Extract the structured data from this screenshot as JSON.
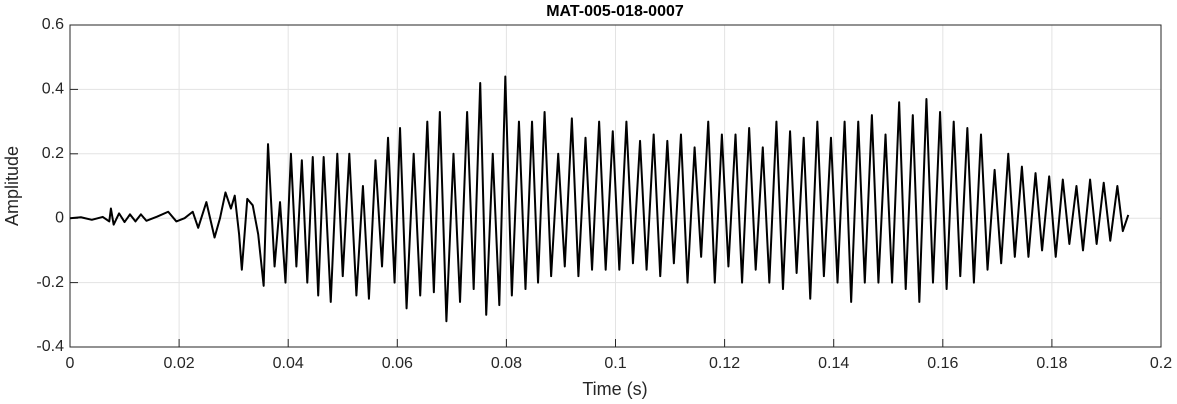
{
  "chart_data": {
    "type": "line",
    "title": "MAT-005-018-0007",
    "xlabel": "Time (s)",
    "ylabel": "Amplitude",
    "color": "#000000",
    "grid": true,
    "xlim": [
      0,
      0.2
    ],
    "ylim": [
      -0.4,
      0.6
    ],
    "xticks": [
      0,
      0.02,
      0.04,
      0.06,
      0.08,
      0.1,
      0.12,
      0.14,
      0.16,
      0.18,
      0.2
    ],
    "yticks": [
      -0.4,
      -0.2,
      0,
      0.2,
      0.4,
      0.6
    ],
    "x": [
      0,
      0.002,
      0.004,
      0.006,
      0.0072,
      0.0075,
      0.008,
      0.009,
      0.01,
      0.011,
      0.012,
      0.013,
      0.014,
      0.016,
      0.018,
      0.0195,
      0.021,
      0.0225,
      0.0235,
      0.025,
      0.0265,
      0.0275,
      0.0285,
      0.0295,
      0.0302,
      0.031,
      0.0315,
      0.0325,
      0.0335,
      0.0345,
      0.0355,
      0.0363,
      0.0375,
      0.0385,
      0.0395,
      0.0405,
      0.0415,
      0.0425,
      0.0435,
      0.0445,
      0.0455,
      0.0465,
      0.0478,
      0.049,
      0.05,
      0.0512,
      0.0525,
      0.0537,
      0.0548,
      0.056,
      0.0572,
      0.0583,
      0.0595,
      0.0605,
      0.0617,
      0.063,
      0.0642,
      0.0655,
      0.0667,
      0.0678,
      0.069,
      0.0703,
      0.0715,
      0.0728,
      0.074,
      0.0752,
      0.0763,
      0.0775,
      0.0787,
      0.0798,
      0.081,
      0.0823,
      0.0835,
      0.0847,
      0.0858,
      0.087,
      0.0882,
      0.0895,
      0.0907,
      0.092,
      0.0932,
      0.0945,
      0.0957,
      0.097,
      0.0982,
      0.0995,
      0.1007,
      0.102,
      0.1032,
      0.1045,
      0.1057,
      0.107,
      0.1082,
      0.1095,
      0.1107,
      0.112,
      0.1132,
      0.1145,
      0.1157,
      0.117,
      0.1182,
      0.1195,
      0.1207,
      0.122,
      0.1232,
      0.1245,
      0.1257,
      0.127,
      0.1282,
      0.1295,
      0.1307,
      0.132,
      0.1332,
      0.1345,
      0.1357,
      0.137,
      0.1382,
      0.1395,
      0.1407,
      0.142,
      0.1432,
      0.1445,
      0.1457,
      0.147,
      0.1482,
      0.1495,
      0.1507,
      0.152,
      0.1532,
      0.1545,
      0.1557,
      0.157,
      0.1582,
      0.1595,
      0.1607,
      0.162,
      0.1632,
      0.1645,
      0.1657,
      0.167,
      0.1682,
      0.1695,
      0.1707,
      0.172,
      0.1732,
      0.1745,
      0.1757,
      0.177,
      0.1782,
      0.1795,
      0.1807,
      0.182,
      0.1832,
      0.1845,
      0.1857,
      0.187,
      0.1882,
      0.1895,
      0.1907,
      0.192,
      0.193,
      0.194
    ],
    "values": [
      0,
      0.003,
      -0.005,
      0.004,
      -0.01,
      0.03,
      -0.02,
      0.015,
      -0.012,
      0.012,
      -0.01,
      0.012,
      -0.008,
      0.005,
      0.02,
      -0.01,
      0,
      0.02,
      -0.03,
      0.05,
      -0.06,
      0,
      0.08,
      0.03,
      0.07,
      -0.05,
      -0.16,
      0.06,
      0.04,
      -0.05,
      -0.21,
      0.23,
      -0.15,
      0.05,
      -0.2,
      0.2,
      -0.15,
      0.18,
      -0.2,
      0.19,
      -0.24,
      0.19,
      -0.26,
      0.2,
      -0.18,
      0.2,
      -0.24,
      0.1,
      -0.25,
      0.18,
      -0.15,
      0.25,
      -0.2,
      0.28,
      -0.28,
      0.2,
      -0.24,
      0.3,
      -0.23,
      0.33,
      -0.32,
      0.2,
      -0.26,
      0.33,
      -0.22,
      0.42,
      -0.3,
      0.2,
      -0.27,
      0.44,
      -0.24,
      0.3,
      -0.22,
      0.3,
      -0.2,
      0.33,
      -0.18,
      0.2,
      -0.15,
      0.31,
      -0.18,
      0.25,
      -0.16,
      0.3,
      -0.16,
      0.27,
      -0.16,
      0.3,
      -0.14,
      0.24,
      -0.16,
      0.26,
      -0.18,
      0.24,
      -0.14,
      0.26,
      -0.2,
      0.22,
      -0.12,
      0.3,
      -0.2,
      0.26,
      -0.15,
      0.26,
      -0.2,
      0.28,
      -0.16,
      0.22,
      -0.2,
      0.3,
      -0.22,
      0.27,
      -0.17,
      0.25,
      -0.25,
      0.3,
      -0.18,
      0.25,
      -0.2,
      0.3,
      -0.26,
      0.3,
      -0.2,
      0.32,
      -0.2,
      0.26,
      -0.2,
      0.36,
      -0.22,
      0.32,
      -0.26,
      0.37,
      -0.2,
      0.33,
      -0.22,
      0.3,
      -0.18,
      0.28,
      -0.2,
      0.26,
      -0.16,
      0.15,
      -0.14,
      0.2,
      -0.12,
      0.16,
      -0.12,
      0.14,
      -0.1,
      0.13,
      -0.12,
      0.12,
      -0.08,
      0.1,
      -0.1,
      0.12,
      -0.08,
      0.11,
      -0.07,
      0.1,
      -0.04,
      0.01
    ]
  }
}
